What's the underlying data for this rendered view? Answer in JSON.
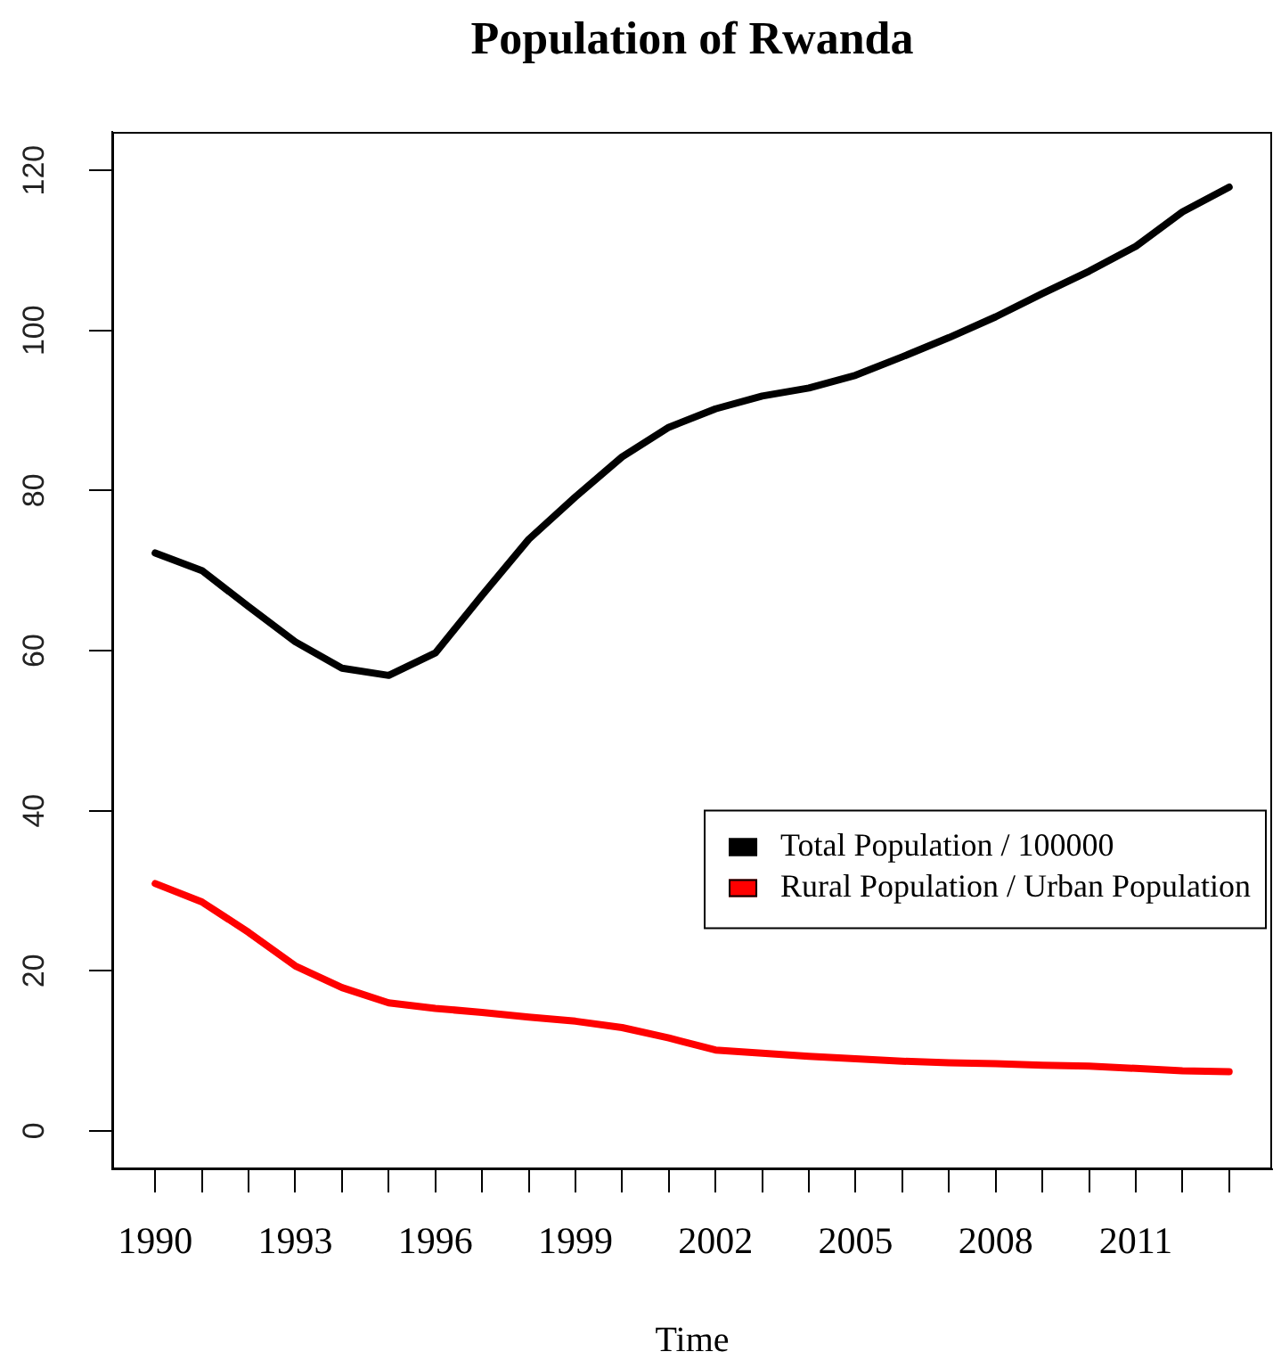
{
  "chart_data": {
    "type": "line",
    "title": "Population of Rwanda",
    "xlabel": "Time",
    "x": [
      1990,
      1991,
      1992,
      1993,
      1994,
      1995,
      1996,
      1997,
      1998,
      1999,
      2000,
      2001,
      2002,
      2003,
      2004,
      2005,
      2006,
      2007,
      2008,
      2009,
      2010,
      2011,
      2012,
      2013
    ],
    "series": [
      {
        "name": "Total Population / 100000",
        "color": "#000000",
        "values": [
          72.2,
          70.0,
          65.5,
          61.1,
          57.8,
          56.9,
          59.7,
          66.9,
          73.9,
          79.2,
          84.2,
          87.9,
          90.2,
          91.8,
          92.8,
          94.4,
          96.7,
          99.1,
          101.7,
          104.6,
          107.4,
          110.5,
          114.8,
          117.9
        ]
      },
      {
        "name": "Rural Population / Urban Population",
        "color": "#ff0000",
        "values": [
          30.9,
          28.6,
          24.8,
          20.6,
          17.9,
          16.0,
          15.3,
          14.8,
          14.2,
          13.7,
          12.9,
          11.6,
          10.1,
          9.7,
          9.3,
          9.0,
          8.7,
          8.5,
          8.4,
          8.2,
          8.1,
          7.8,
          7.5,
          7.4
        ]
      }
    ],
    "xlim": [
      1989.08,
      2013.92
    ],
    "xticks": [
      1990,
      {
        "value": 1991,
        "label": null
      },
      {
        "value": 1992,
        "label": null
      },
      1993,
      {
        "value": 1994,
        "label": null
      },
      {
        "value": 1995,
        "label": null
      },
      1996,
      {
        "value": 1997,
        "label": null
      },
      {
        "value": 1998,
        "label": null
      },
      1999,
      {
        "value": 2000,
        "label": null
      },
      {
        "value": 2001,
        "label": null
      },
      2002,
      {
        "value": 2003,
        "label": null
      },
      {
        "value": 2004,
        "label": null
      },
      2005,
      {
        "value": 2006,
        "label": null
      },
      {
        "value": 2007,
        "label": null
      },
      2008,
      {
        "value": 2009,
        "label": null
      },
      {
        "value": 2010,
        "label": null
      },
      2011,
      {
        "value": 2012,
        "label": null
      },
      {
        "value": 2013,
        "label": null
      }
    ],
    "ylim": [
      -4.8,
      124.8
    ],
    "yticks": [
      0,
      20,
      40,
      60,
      80,
      100,
      120
    ],
    "legend": "right"
  }
}
